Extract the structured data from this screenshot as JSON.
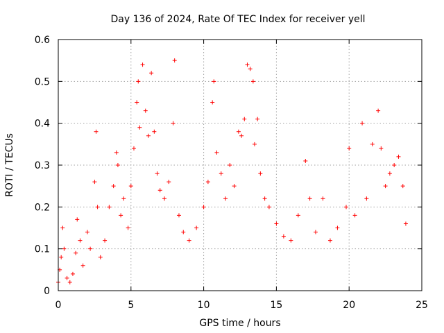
{
  "chart_data": {
    "type": "scatter",
    "title": "Day 136 of 2024, Rate Of TEC Index for receiver yell",
    "xlabel": "GPS time / hours",
    "ylabel": "ROTI / TECUs",
    "xlim": [
      0,
      25
    ],
    "ylim": [
      0,
      0.6
    ],
    "x_ticks": [
      0,
      5,
      10,
      15,
      20,
      25
    ],
    "x_tick_labels": [
      "0",
      "5",
      "10",
      "15",
      "20",
      "25"
    ],
    "y_ticks": [
      0,
      0.1,
      0.2,
      0.3,
      0.4,
      0.5,
      0.6
    ],
    "y_tick_labels": [
      "0",
      "0.1",
      "0.2",
      "0.3",
      "0.4",
      "0.5",
      "0.6"
    ],
    "grid": true,
    "marker": "+",
    "series": [
      {
        "name": "ROTI",
        "color": "#ff0000",
        "points": [
          [
            0.0,
            0.02
          ],
          [
            0.1,
            0.05
          ],
          [
            0.2,
            0.08
          ],
          [
            0.3,
            0.15
          ],
          [
            0.4,
            0.1
          ],
          [
            0.6,
            0.03
          ],
          [
            0.8,
            0.02
          ],
          [
            1.0,
            0.04
          ],
          [
            1.2,
            0.09
          ],
          [
            1.3,
            0.17
          ],
          [
            1.5,
            0.12
          ],
          [
            1.7,
            0.06
          ],
          [
            2.0,
            0.14
          ],
          [
            2.2,
            0.1
          ],
          [
            2.5,
            0.26
          ],
          [
            2.6,
            0.38
          ],
          [
            2.7,
            0.2
          ],
          [
            2.9,
            0.08
          ],
          [
            3.2,
            0.12
          ],
          [
            3.5,
            0.2
          ],
          [
            3.8,
            0.25
          ],
          [
            4.0,
            0.33
          ],
          [
            4.1,
            0.3
          ],
          [
            4.3,
            0.18
          ],
          [
            4.5,
            0.22
          ],
          [
            4.8,
            0.15
          ],
          [
            5.0,
            0.25
          ],
          [
            5.2,
            0.34
          ],
          [
            5.4,
            0.45
          ],
          [
            5.5,
            0.5
          ],
          [
            5.6,
            0.39
          ],
          [
            5.8,
            0.54
          ],
          [
            6.0,
            0.43
          ],
          [
            6.2,
            0.37
          ],
          [
            6.4,
            0.52
          ],
          [
            6.6,
            0.38
          ],
          [
            6.8,
            0.28
          ],
          [
            7.0,
            0.24
          ],
          [
            7.3,
            0.22
          ],
          [
            7.6,
            0.26
          ],
          [
            7.9,
            0.4
          ],
          [
            8.0,
            0.55
          ],
          [
            8.3,
            0.18
          ],
          [
            8.6,
            0.14
          ],
          [
            9.0,
            0.12
          ],
          [
            9.5,
            0.15
          ],
          [
            10.0,
            0.2
          ],
          [
            10.3,
            0.26
          ],
          [
            10.6,
            0.45
          ],
          [
            10.7,
            0.5
          ],
          [
            10.9,
            0.33
          ],
          [
            11.2,
            0.28
          ],
          [
            11.5,
            0.22
          ],
          [
            11.8,
            0.3
          ],
          [
            12.1,
            0.25
          ],
          [
            12.4,
            0.38
          ],
          [
            12.6,
            0.37
          ],
          [
            12.8,
            0.41
          ],
          [
            13.0,
            0.54
          ],
          [
            13.2,
            0.53
          ],
          [
            13.4,
            0.5
          ],
          [
            13.5,
            0.35
          ],
          [
            13.7,
            0.41
          ],
          [
            13.9,
            0.28
          ],
          [
            14.2,
            0.22
          ],
          [
            14.5,
            0.2
          ],
          [
            15.0,
            0.16
          ],
          [
            15.5,
            0.13
          ],
          [
            16.0,
            0.12
          ],
          [
            16.5,
            0.18
          ],
          [
            17.0,
            0.31
          ],
          [
            17.3,
            0.22
          ],
          [
            17.7,
            0.14
          ],
          [
            18.2,
            0.22
          ],
          [
            18.7,
            0.12
          ],
          [
            19.2,
            0.15
          ],
          [
            19.8,
            0.2
          ],
          [
            20.0,
            0.34
          ],
          [
            20.4,
            0.18
          ],
          [
            20.9,
            0.4
          ],
          [
            21.2,
            0.22
          ],
          [
            21.6,
            0.35
          ],
          [
            22.0,
            0.43
          ],
          [
            22.2,
            0.34
          ],
          [
            22.5,
            0.25
          ],
          [
            22.8,
            0.28
          ],
          [
            23.1,
            0.3
          ],
          [
            23.4,
            0.32
          ],
          [
            23.7,
            0.25
          ],
          [
            23.9,
            0.16
          ]
        ]
      }
    ]
  }
}
